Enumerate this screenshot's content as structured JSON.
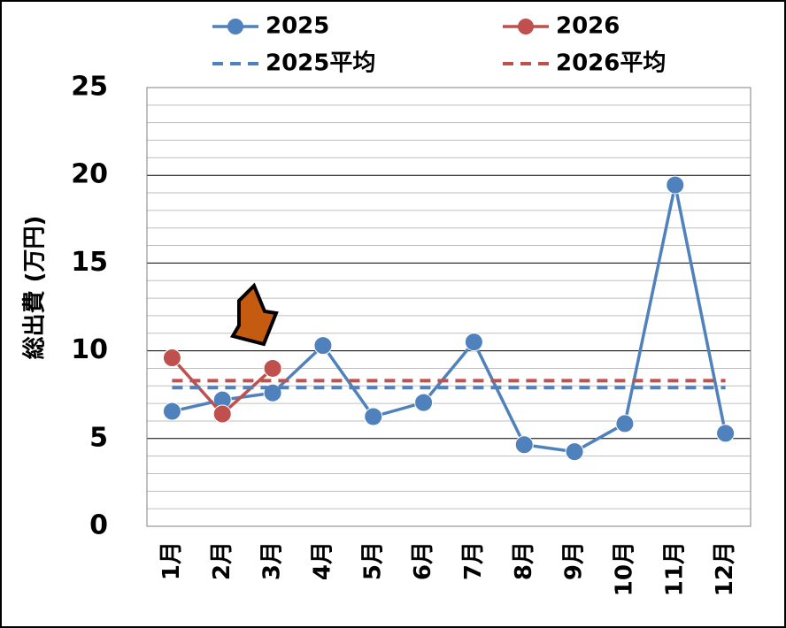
{
  "chart_data": {
    "type": "line",
    "y_label": "総出費 (万円)",
    "categories": [
      "1月",
      "2月",
      "3月",
      "4月",
      "5月",
      "6月",
      "7月",
      "8月",
      "9月",
      "10月",
      "11月",
      "12月"
    ],
    "series": [
      {
        "name": "2025",
        "color": "#4f81bd",
        "markers": true,
        "values": [
          6.55,
          7.2,
          7.6,
          10.3,
          6.25,
          7.05,
          10.5,
          4.65,
          4.25,
          5.85,
          19.45,
          5.3
        ]
      },
      {
        "name": "2026",
        "color": "#c0504d",
        "markers": true,
        "values": [
          9.6,
          6.4,
          9.0,
          null,
          null,
          null,
          null,
          null,
          null,
          null,
          null,
          null
        ]
      },
      {
        "name": "2025平均",
        "color": "#4f81bd",
        "dashed": true,
        "values": [
          7.9,
          7.9,
          7.9,
          7.9,
          7.9,
          7.9,
          7.9,
          7.9,
          7.9,
          7.9,
          7.9,
          7.9
        ]
      },
      {
        "name": "2026平均",
        "color": "#c0504d",
        "dashed": true,
        "values": [
          8.3,
          8.3,
          8.3,
          8.3,
          8.3,
          8.3,
          8.3,
          8.3,
          8.3,
          8.3,
          8.3,
          8.3
        ]
      }
    ],
    "ylim": [
      0,
      25
    ],
    "yticks": [
      0,
      5,
      10,
      15,
      20,
      25
    ],
    "minor_yticks": [
      1,
      2,
      3,
      4,
      6,
      7,
      8,
      9,
      11,
      12,
      13,
      14,
      16,
      17,
      18,
      19,
      21,
      22,
      23,
      24
    ],
    "grid": true,
    "legend": "top"
  }
}
